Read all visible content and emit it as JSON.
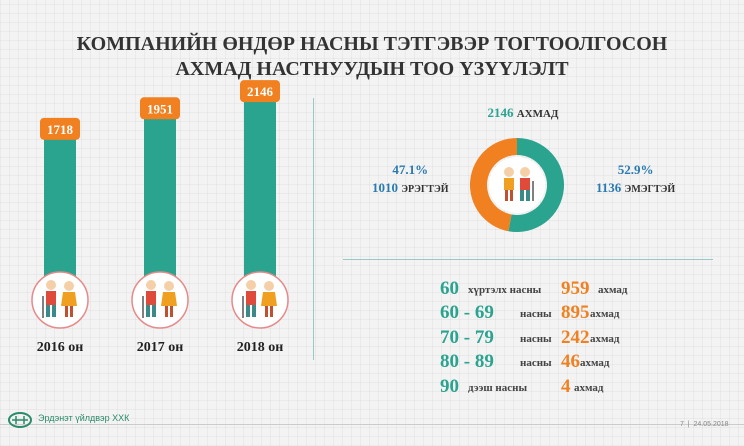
{
  "title": {
    "line1": "КОМПАНИЙН ӨНДӨР НАСНЫ ТЭТГЭВЭР ТОГТООЛГОСОН",
    "line2": "АХМАД НАСТНУУДЫН ТОО ҮЗҮҮЛЭЛТ"
  },
  "colors": {
    "teal": "#2aa38f",
    "orange": "#f08020",
    "blue": "#2a7ab0"
  },
  "chart_data": [
    {
      "type": "bar",
      "categories": [
        "2016 он",
        "2017 он",
        "2018 он"
      ],
      "values": [
        1718,
        1951,
        2146
      ],
      "value_labels": [
        "1718",
        "1951",
        "2146"
      ],
      "icon": "elderly-couple-icon"
    },
    {
      "type": "pie",
      "total_label": {
        "num": "2146",
        "unit": "АХМАД"
      },
      "slices": [
        {
          "label": "ЭМЭГТЭЙ",
          "value": 1136,
          "percent": "52.9%",
          "count": "1136",
          "color": "#2aa38f"
        },
        {
          "label": "ЭРЭГТЭЙ",
          "value": 1010,
          "percent": "47.1%",
          "count": "1010",
          "color": "#f08020"
        }
      ]
    },
    {
      "type": "table",
      "rows": [
        {
          "range": "60",
          "suffix": "хүртэлх насны",
          "count": "959",
          "unit": "ахмад"
        },
        {
          "range": "60 - 69",
          "suffix": "насны",
          "count": "895",
          "unit": "ахмад"
        },
        {
          "range": "70 - 79",
          "suffix": "насны",
          "count": "242",
          "unit": "ахмад"
        },
        {
          "range": "80 - 89",
          "suffix": "насны",
          "count": "46",
          "unit": "ахмад"
        },
        {
          "range": "90",
          "suffix": "дээш насны",
          "count": "4",
          "unit": "ахмад"
        }
      ]
    }
  ],
  "footer": {
    "company": "Эрдэнэт үйлдвэр ХХК",
    "page": "7",
    "date": "24.05.2018"
  }
}
